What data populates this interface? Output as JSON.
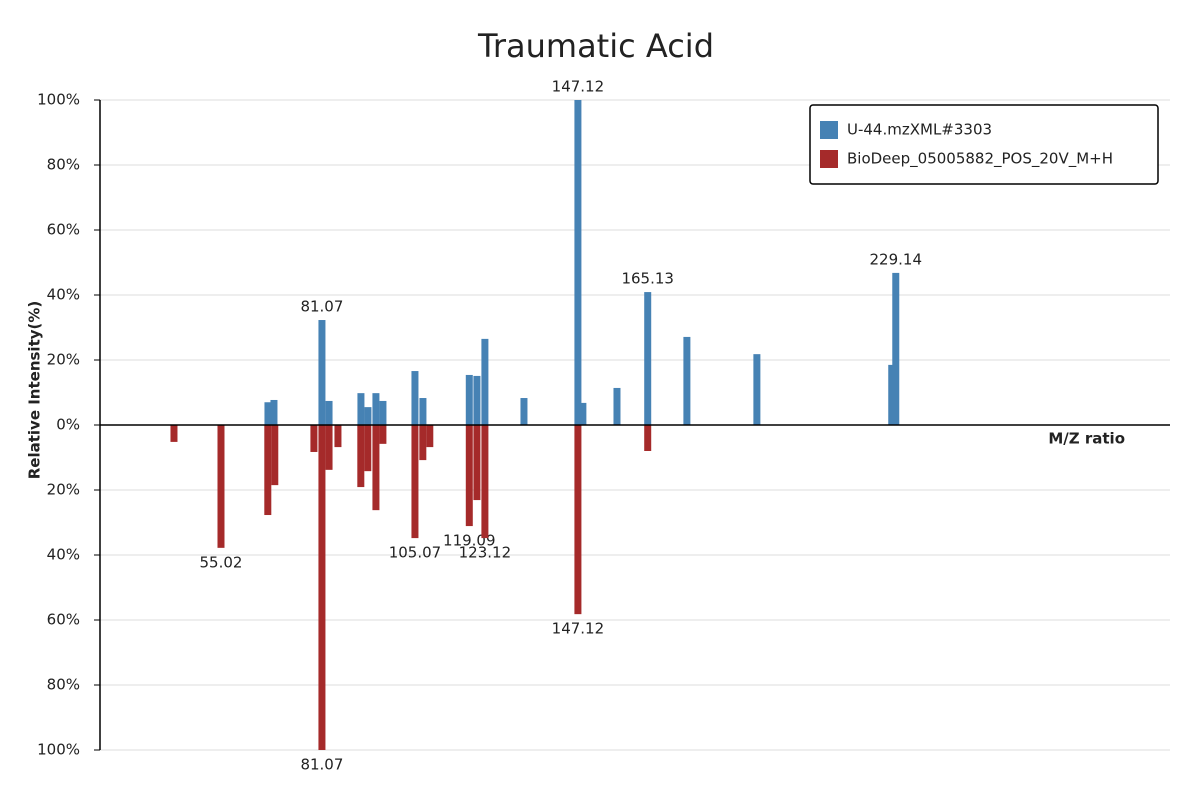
{
  "chart_data": {
    "type": "mirror-bar",
    "title": "Traumatic Acid",
    "x_label": "M/Z ratio",
    "y_label": "Relative Intensity(%)",
    "xlim": [
      23.8,
      299.9
    ],
    "ylim": [
      -100,
      100
    ],
    "yticks": [
      {
        "value": 100,
        "label": "100%"
      },
      {
        "value": 80,
        "label": "80%"
      },
      {
        "value": 60,
        "label": "60%"
      },
      {
        "value": 40,
        "label": "40%"
      },
      {
        "value": 20,
        "label": "20%"
      },
      {
        "value": 0,
        "label": "0%"
      },
      {
        "value": -20,
        "label": "20%"
      },
      {
        "value": -40,
        "label": "40%"
      },
      {
        "value": -60,
        "label": "60%"
      },
      {
        "value": -80,
        "label": "80%"
      },
      {
        "value": -100,
        "label": "100%"
      }
    ],
    "grid": true,
    "legend": "top-right",
    "series": [
      {
        "name": "U-44.mzXML#3303",
        "color": "#4682b4",
        "direction": "up",
        "x": [
          67.14,
          68.69,
          81.07,
          82.9,
          91.13,
          92.94,
          95.0,
          96.81,
          105.07,
          107.13,
          119.09,
          121.06,
          123.12,
          133.2,
          147.12,
          148.4,
          157.2,
          165.13,
          175.24,
          193.3,
          228.1,
          229.14
        ],
        "values": [
          7,
          7.7,
          32.3,
          7.4,
          9.8,
          5.5,
          9.8,
          7.4,
          16.6,
          8.3,
          15.4,
          15.1,
          26.5,
          8.3,
          100,
          6.8,
          11.4,
          40.9,
          27.1,
          21.8,
          18.5,
          46.8
        ],
        "point_labels": [
          null,
          null,
          "81.07",
          null,
          null,
          null,
          null,
          null,
          null,
          null,
          null,
          null,
          null,
          null,
          "147.12",
          null,
          null,
          "165.13",
          null,
          null,
          null,
          "229.14"
        ]
      },
      {
        "name": "BioDeep_05005882_POS_20V_M+H",
        "color": "#a52a2a",
        "direction": "down",
        "x": [
          42.89,
          55.02,
          67.1,
          68.9,
          79.0,
          81.07,
          82.9,
          85.2,
          91.1,
          92.9,
          95.0,
          96.8,
          105.07,
          107.1,
          108.9,
          119.09,
          121.06,
          123.12,
          147.12,
          165.13
        ],
        "values": [
          5.2,
          37.8,
          27.7,
          18.5,
          8.3,
          100,
          13.8,
          6.8,
          19.1,
          14.2,
          26.2,
          5.8,
          34.8,
          10.8,
          6.8,
          31.1,
          23.1,
          34.8,
          58.2,
          8.0
        ],
        "point_labels": [
          null,
          "55.02",
          null,
          null,
          null,
          "81.07",
          null,
          null,
          null,
          null,
          null,
          null,
          "105.07",
          null,
          null,
          "119.09",
          null,
          "123.12",
          "147.12",
          null
        ]
      }
    ]
  }
}
